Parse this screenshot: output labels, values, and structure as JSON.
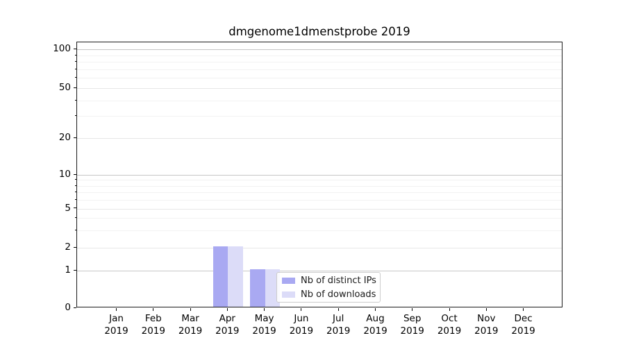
{
  "title": "dmgenome1dmenstprobe 2019",
  "chart_data": {
    "type": "bar",
    "title": "dmgenome1dmenstprobe 2019",
    "categories": [
      "Jan",
      "Feb",
      "Mar",
      "Apr",
      "May",
      "Jun",
      "Jul",
      "Aug",
      "Sep",
      "Oct",
      "Nov",
      "Dec"
    ],
    "year_label": "2019",
    "series": [
      {
        "name": "Nb of distinct IPs",
        "color": "#a9a9f2",
        "values": [
          0,
          0,
          0,
          2,
          1,
          0,
          0,
          0,
          0,
          0,
          0,
          0
        ]
      },
      {
        "name": "Nb of downloads",
        "color": "#dcdcf8",
        "values": [
          0,
          0,
          0,
          2,
          1,
          0,
          0,
          0,
          0,
          0,
          0,
          0
        ]
      }
    ],
    "xlabel": "",
    "ylabel": "",
    "y_axis": {
      "scale": "symlog",
      "tick_values": [
        0,
        1,
        2,
        5,
        10,
        20,
        50,
        100
      ],
      "tick_labels": [
        "0",
        "1",
        "2",
        "5",
        "10",
        "20",
        "50",
        "100"
      ],
      "minor_tick_values": [
        3,
        4,
        6,
        7,
        8,
        9,
        30,
        40,
        60,
        70,
        80,
        90
      ],
      "ylim": [
        0,
        113
      ]
    },
    "grid": "on",
    "legend": {
      "position": "lower center-right inside plot",
      "entries": [
        "Nb of distinct IPs",
        "Nb of downloads"
      ]
    }
  }
}
